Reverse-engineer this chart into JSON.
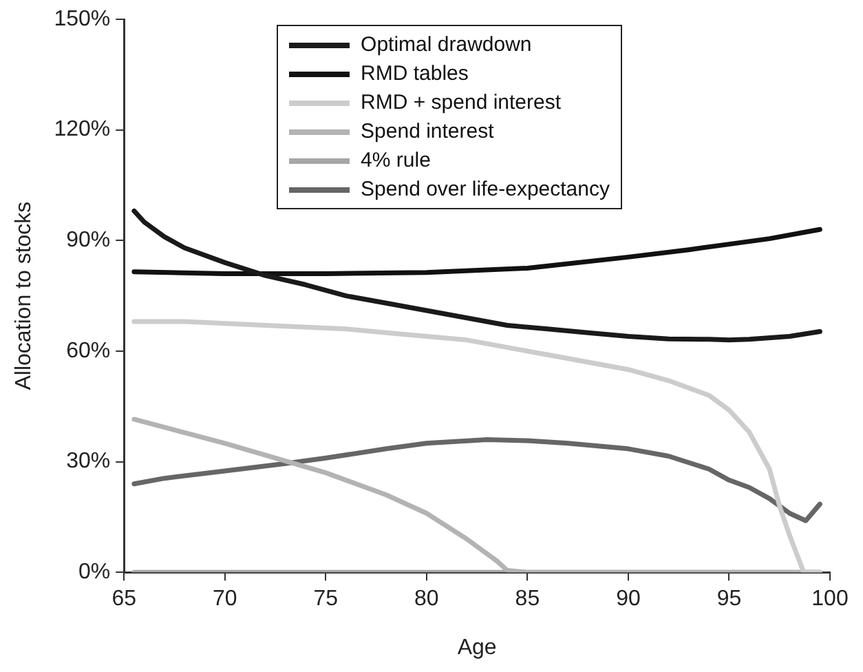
{
  "chart_data": {
    "type": "line",
    "xlabel": "Age",
    "ylabel": "Allocation to stocks",
    "xlim": [
      65,
      100
    ],
    "xticks": [
      65,
      70,
      75,
      80,
      85,
      90,
      95,
      100
    ],
    "ylim": [
      0,
      150
    ],
    "yticks": [
      {
        "value": 0,
        "label": "0%"
      },
      {
        "value": 30,
        "label": "30%"
      },
      {
        "value": 60,
        "label": "60%"
      },
      {
        "value": 90,
        "label": "90%"
      },
      {
        "value": 120,
        "label": "120%"
      },
      {
        "value": 150,
        "label": "150%"
      }
    ],
    "grid": false,
    "legend": "top",
    "marker": "none",
    "line_style": "solid",
    "series": [
      {
        "name": "Optimal drawdown",
        "color": "#1a1a1a",
        "x": [
          65.5,
          66,
          67,
          68,
          70,
          72,
          74,
          76,
          78,
          80,
          82,
          84,
          86,
          88,
          90,
          92,
          94,
          95,
          96,
          98,
          99.5
        ],
        "values": [
          98,
          95,
          91,
          88,
          84,
          80.5,
          78,
          75,
          73,
          71,
          69,
          67,
          66,
          65,
          64,
          63.3,
          63.2,
          63,
          63.2,
          64,
          65.3
        ]
      },
      {
        "name": "RMD tables",
        "color": "#111111",
        "x": [
          65.5,
          70,
          75,
          80,
          85,
          90,
          93,
          95,
          97,
          99.5
        ],
        "values": [
          81.5,
          81,
          81,
          81.3,
          82.5,
          85.5,
          87.5,
          89,
          90.5,
          93
        ]
      },
      {
        "name": "RMD + spend interest",
        "color": "#cccccc",
        "x": [
          65.5,
          68,
          72,
          76,
          78,
          82,
          86,
          88,
          90,
          92,
          94,
          95,
          96,
          97,
          97.5,
          98,
          98.7,
          99.5
        ],
        "values": [
          68,
          68,
          67,
          66,
          65,
          63,
          59,
          57,
          55,
          52,
          48,
          44,
          38,
          28,
          18,
          10,
          0,
          0
        ]
      },
      {
        "name": "Spend interest",
        "color": "#b3b3b3",
        "x": [
          65.5,
          70,
          75,
          78,
          80,
          82,
          83.5,
          84,
          85,
          99.5
        ],
        "values": [
          41.5,
          35,
          27,
          21,
          16,
          9,
          3,
          0.5,
          0,
          0
        ]
      },
      {
        "name": "4% rule",
        "color": "#a6a6a6",
        "x": [
          65.5,
          99.5
        ],
        "values": [
          0,
          0
        ]
      },
      {
        "name": "Spend over life-expectancy",
        "color": "#666666",
        "x": [
          65.5,
          67,
          70,
          73,
          75,
          78,
          80,
          83,
          85,
          87,
          90,
          92,
          94,
          95,
          96,
          97,
          98,
          98.8,
          99.5
        ],
        "values": [
          24,
          25.5,
          27.5,
          29.5,
          31,
          33.5,
          35,
          36,
          35.7,
          35,
          33.5,
          31.5,
          28,
          25,
          23,
          20,
          16,
          14,
          18.5
        ]
      }
    ]
  }
}
